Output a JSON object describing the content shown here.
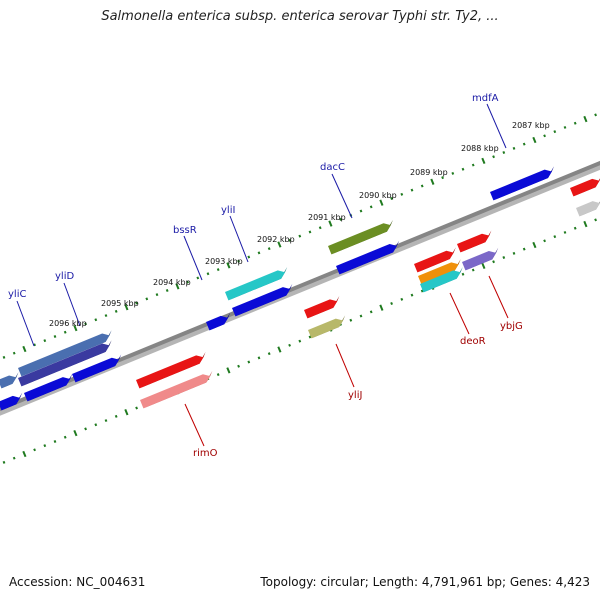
{
  "title": "Salmonella enterica subsp. enterica serovar Typhi str. Ty2, ...",
  "footer": {
    "accession": "Accession: NC_004631",
    "info": "Topology: circular; Length: 4,791,961 bp; Genes: 4,423"
  },
  "colors": {
    "backbone": "#858585",
    "ticks": "#1f7a1f",
    "label_top": "#1a1aa6",
    "label_bottom": "#a00000"
  },
  "kbp_labels": {
    "top": [
      "2087 kbp",
      "2088 kbp",
      "2089 kbp",
      "2090 kbp",
      "2091 kbp",
      "2092 kbp",
      "2093 kbp",
      "2094 kbp",
      "2095 kbp",
      "2096 kbp"
    ]
  },
  "gene_labels": {
    "top": [
      "mdfA",
      "dacC",
      "yliI",
      "bssR",
      "yliD",
      "yliC"
    ],
    "bottom": [
      "ybjG",
      "deoR",
      "yliJ",
      "rimO"
    ]
  }
}
